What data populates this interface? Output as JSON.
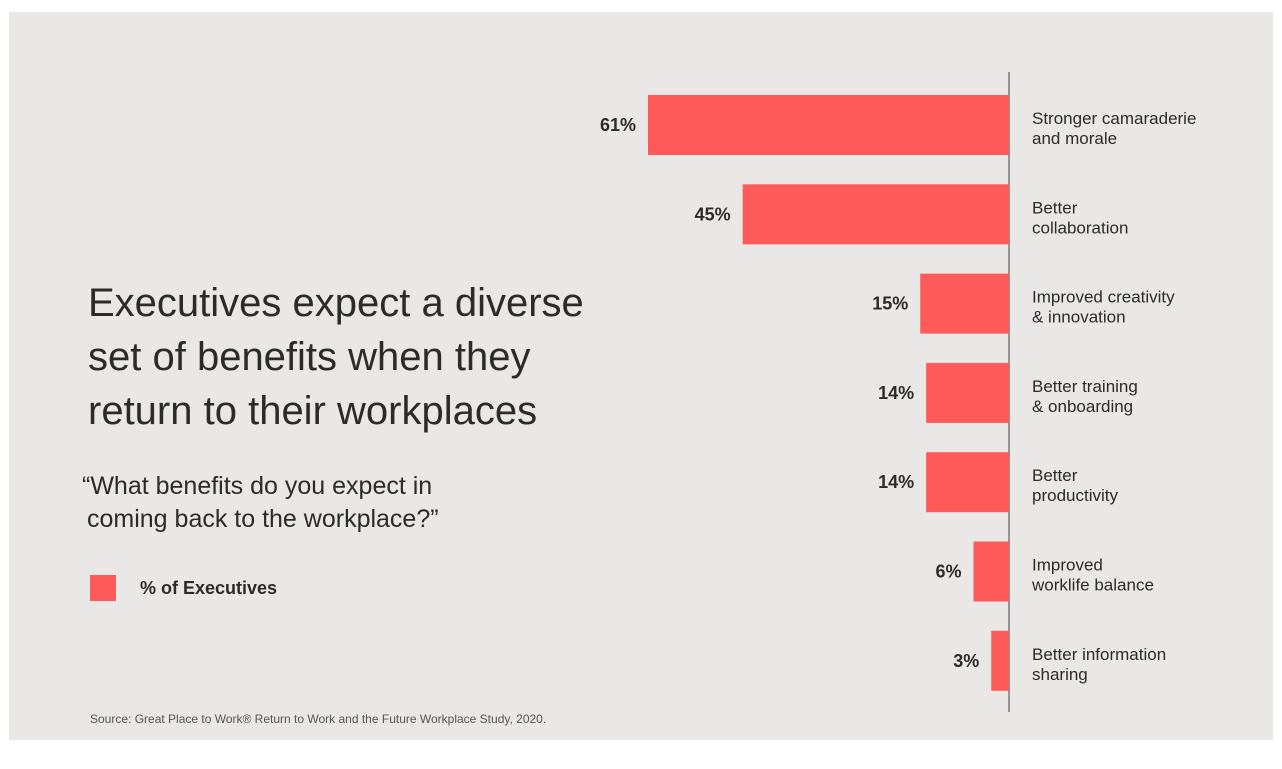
{
  "title_lines": [
    "Executives expect a diverse",
    "set of benefits when they",
    "return to their workplaces"
  ],
  "question_lines": [
    "“What benefits do you expect in",
    "coming back to the workplace?”"
  ],
  "legend": {
    "label": "% of Executives",
    "color": "#ff5a5a"
  },
  "source": "Source: Great Place to Work® Return to Work and the Future Workplace Study, 2020.",
  "colors": {
    "background": "#e9e8e6",
    "bar": "#ff5a5a",
    "axis": "#777777",
    "text": "#2b2b2b"
  },
  "chart_data": {
    "type": "bar",
    "orientation": "horizontal",
    "categories": [
      [
        "Stronger camaraderie",
        "and morale"
      ],
      [
        "Better",
        "collaboration"
      ],
      [
        "Improved creativity",
        "& innovation"
      ],
      [
        "Better training",
        "& onboarding"
      ],
      [
        "Better",
        "productivity"
      ],
      [
        "Improved",
        "worklife balance"
      ],
      [
        "Better information",
        "sharing"
      ]
    ],
    "values": [
      61,
      45,
      15,
      14,
      14,
      6,
      3
    ],
    "value_labels": [
      "61%",
      "45%",
      "15%",
      "14%",
      "14%",
      "6%",
      "3%"
    ],
    "unit": "%",
    "xlim": [
      0,
      61
    ],
    "series": [
      {
        "name": "% of Executives",
        "values": [
          61,
          45,
          15,
          14,
          14,
          6,
          3
        ]
      }
    ],
    "grid": false,
    "legend": "left"
  }
}
